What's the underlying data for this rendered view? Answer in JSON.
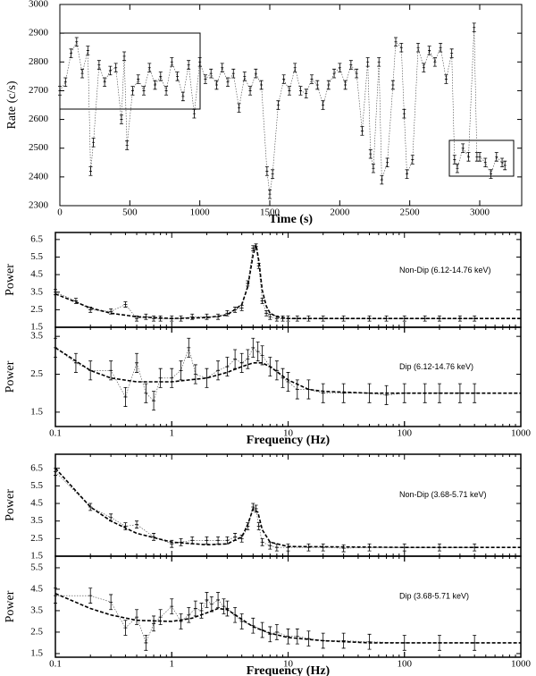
{
  "chart_data": [
    {
      "type": "line",
      "xlabel": "Time (s)",
      "ylabel": "Rate (c/s)",
      "xlim": [
        0,
        3300
      ],
      "xticks": [
        0,
        500,
        1000,
        1500,
        2000,
        2500,
        3000
      ],
      "ylim": [
        2300,
        3000
      ],
      "yticks": [
        2300,
        2400,
        2500,
        2600,
        2700,
        2800,
        2900,
        3000
      ],
      "error": 15,
      "color": "#000000",
      "x": [
        0,
        40,
        80,
        120,
        160,
        200,
        220,
        240,
        280,
        320,
        360,
        400,
        440,
        460,
        480,
        520,
        560,
        600,
        640,
        680,
        720,
        760,
        800,
        840,
        880,
        920,
        960,
        1000,
        1040,
        1080,
        1120,
        1160,
        1200,
        1240,
        1280,
        1320,
        1360,
        1400,
        1440,
        1480,
        1500,
        1520,
        1560,
        1600,
        1640,
        1680,
        1720,
        1760,
        1800,
        1840,
        1880,
        1920,
        1960,
        2000,
        2040,
        2080,
        2120,
        2160,
        2200,
        2220,
        2240,
        2280,
        2300,
        2340,
        2380,
        2400,
        2440,
        2460,
        2480,
        2520,
        2560,
        2600,
        2640,
        2680,
        2720,
        2760,
        2800,
        2820,
        2840,
        2880,
        2920,
        2960,
        2980,
        3000,
        3040,
        3080,
        3120,
        3160,
        3180
      ],
      "values": [
        2700,
        2730,
        2830,
        2870,
        2760,
        2840,
        2420,
        2520,
        2790,
        2730,
        2770,
        2780,
        2600,
        2820,
        2510,
        2700,
        2740,
        2700,
        2780,
        2720,
        2750,
        2700,
        2800,
        2750,
        2680,
        2790,
        2620,
        2800,
        2740,
        2760,
        2720,
        2780,
        2730,
        2760,
        2640,
        2750,
        2700,
        2760,
        2720,
        2420,
        2340,
        2410,
        2650,
        2740,
        2700,
        2780,
        2700,
        2690,
        2740,
        2720,
        2650,
        2720,
        2760,
        2780,
        2720,
        2790,
        2760,
        2560,
        2800,
        2480,
        2430,
        2800,
        2390,
        2450,
        2720,
        2870,
        2850,
        2620,
        2410,
        2460,
        2850,
        2780,
        2840,
        2800,
        2850,
        2740,
        2830,
        2460,
        2430,
        2500,
        2470,
        2920,
        2470,
        2470,
        2450,
        2410,
        2470,
        2450,
        2440
      ]
    },
    {
      "type": "scatter",
      "xscale": "log",
      "ylabel": "Power",
      "annotation": "Non-Dip (6.12-14.76 keV)",
      "xlim": [
        0.1,
        1000
      ],
      "ylim": [
        1.5,
        6.9
      ],
      "yticks": [
        1.5,
        2.5,
        3.5,
        4.5,
        5.5,
        6.5
      ],
      "error": 0.15,
      "x": [
        0.1,
        0.15,
        0.2,
        0.3,
        0.4,
        0.5,
        0.6,
        0.7,
        0.8,
        1,
        1.2,
        1.5,
        2,
        2.5,
        3,
        3.5,
        4,
        4.5,
        5,
        5.3,
        5.6,
        6,
        6.5,
        7,
        8,
        9,
        10,
        12,
        15,
        20,
        30,
        50,
        70,
        100,
        150,
        200,
        300,
        400
      ],
      "values": [
        3.5,
        3.0,
        2.5,
        2.4,
        2.8,
        2.0,
        2.1,
        2.0,
        2.0,
        2.0,
        2.0,
        2.1,
        2.1,
        2.1,
        2.3,
        2.5,
        2.6,
        4.0,
        6.0,
        6.1,
        5.0,
        3.0,
        2.3,
        2.1,
        2.0,
        2.0,
        2.0,
        2.0,
        2.0,
        2.0,
        2.0,
        2.0,
        2.0,
        2.0,
        2.0,
        2.0,
        2.0,
        2.0
      ],
      "model_x": [
        0.1,
        0.2,
        0.3,
        0.5,
        1,
        2,
        3,
        4,
        4.5,
        5,
        5.3,
        5.6,
        6,
        6.5,
        7,
        8,
        10,
        20,
        50,
        100,
        300,
        1000
      ],
      "model_values": [
        3.4,
        2.6,
        2.3,
        2.1,
        2.0,
        2.05,
        2.2,
        2.8,
        3.8,
        5.6,
        6.2,
        5.3,
        3.6,
        2.7,
        2.3,
        2.1,
        2.0,
        2.0,
        2.0,
        2.0,
        2.0,
        2.0
      ]
    },
    {
      "type": "scatter",
      "xscale": "log",
      "ylabel": "Power",
      "xlabel": "Frequency (Hz)",
      "annotation": "Dip (6.12-14.76 keV)",
      "xlim": [
        0.1,
        1000
      ],
      "xticks": [
        0.1,
        1,
        10,
        100,
        1000
      ],
      "ylim": [
        1.12,
        3.74
      ],
      "yticks": [
        1.5,
        2.5,
        3.5
      ],
      "error": 0.25,
      "x": [
        0.1,
        0.15,
        0.2,
        0.3,
        0.4,
        0.5,
        0.6,
        0.7,
        0.8,
        1,
        1.2,
        1.4,
        1.6,
        2,
        2.5,
        3,
        3.5,
        4,
        4.5,
        5,
        5.5,
        6,
        7,
        8,
        9,
        10,
        12,
        15,
        20,
        30,
        50,
        70,
        100,
        150,
        200,
        300,
        400
      ],
      "values": [
        3.2,
        2.8,
        2.6,
        2.6,
        1.9,
        2.8,
        2.0,
        1.8,
        2.4,
        2.4,
        2.6,
        3.2,
        2.5,
        2.4,
        2.6,
        2.7,
        2.9,
        2.8,
        2.9,
        3.2,
        3.1,
        3.0,
        2.7,
        2.6,
        2.4,
        2.3,
        2.1,
        2.1,
        2.0,
        2.0,
        2.0,
        1.95,
        2.0,
        2.0,
        2.0,
        2.0,
        2.0
      ],
      "model_x": [
        0.1,
        0.2,
        0.3,
        0.5,
        1,
        2,
        3,
        4,
        5,
        6,
        7,
        10,
        15,
        20,
        50,
        100,
        1000
      ],
      "model_values": [
        3.2,
        2.6,
        2.4,
        2.3,
        2.3,
        2.4,
        2.55,
        2.7,
        2.8,
        2.8,
        2.7,
        2.35,
        2.1,
        2.05,
        2.0,
        2.0,
        2.0
      ]
    },
    {
      "type": "scatter",
      "xscale": "log",
      "ylabel": "Power",
      "annotation": "Non-Dip (3.68-5.71 keV)",
      "xlim": [
        0.1,
        1000
      ],
      "ylim": [
        1.5,
        7.3
      ],
      "yticks": [
        1.5,
        2.5,
        3.5,
        4.5,
        5.5,
        6.5
      ],
      "error": 0.2,
      "x": [
        0.1,
        0.2,
        0.3,
        0.4,
        0.5,
        0.7,
        1,
        1.2,
        1.5,
        2,
        2.5,
        3,
        3.5,
        4,
        4.5,
        5,
        5.3,
        5.6,
        6,
        7,
        8,
        10,
        15,
        20,
        30,
        50,
        100,
        200,
        400
      ],
      "values": [
        6.3,
        4.3,
        3.7,
        3.2,
        3.3,
        2.6,
        2.2,
        2.3,
        2.4,
        2.4,
        2.4,
        2.4,
        2.6,
        2.5,
        3.2,
        4.3,
        4.2,
        3.2,
        2.3,
        2.1,
        2.0,
        2.0,
        2.0,
        2.0,
        1.95,
        2.0,
        2.0,
        2.0,
        2.0
      ],
      "model_x": [
        0.1,
        0.2,
        0.3,
        0.5,
        1,
        2,
        3,
        4,
        4.5,
        5,
        5.5,
        6,
        7,
        10,
        100,
        1000
      ],
      "model_values": [
        6.5,
        4.3,
        3.5,
        2.8,
        2.3,
        2.15,
        2.2,
        2.6,
        3.3,
        4.2,
        4.0,
        3.0,
        2.3,
        2.05,
        2.0,
        2.0
      ]
    },
    {
      "type": "scatter",
      "xscale": "log",
      "ylabel": "Power",
      "xlabel": "Frequency (Hz)",
      "annotation": "Dip (3.68-5.71 keV)",
      "xlim": [
        0.1,
        1000
      ],
      "xticks": [
        0.1,
        1,
        10,
        100,
        1000
      ],
      "ylim": [
        1.33,
        6.04
      ],
      "yticks": [
        1.5,
        2.5,
        3.5,
        4.5,
        5.5
      ],
      "error": 0.35,
      "x": [
        0.1,
        0.2,
        0.3,
        0.4,
        0.5,
        0.6,
        0.7,
        0.8,
        1,
        1.2,
        1.4,
        1.6,
        1.8,
        2,
        2.2,
        2.5,
        2.8,
        3,
        3.5,
        4,
        5,
        6,
        7,
        8,
        10,
        12,
        15,
        20,
        30,
        50,
        100,
        200,
        400
      ],
      "values": [
        4.2,
        4.2,
        3.9,
        2.7,
        3.2,
        2.0,
        2.9,
        3.2,
        3.7,
        3.0,
        3.3,
        3.6,
        3.5,
        4.0,
        3.8,
        4.0,
        3.7,
        3.6,
        3.3,
        3.0,
        2.8,
        2.6,
        2.4,
        2.5,
        2.3,
        2.3,
        2.2,
        2.1,
        2.1,
        2.05,
        2.0,
        2.0,
        2.0
      ],
      "model_x": [
        0.1,
        0.2,
        0.3,
        0.5,
        1,
        1.5,
        2,
        2.5,
        3,
        4,
        5,
        7,
        10,
        20,
        50,
        100,
        1000
      ],
      "model_values": [
        4.3,
        3.6,
        3.3,
        3.05,
        3.0,
        3.15,
        3.4,
        3.6,
        3.55,
        3.1,
        2.75,
        2.45,
        2.25,
        2.1,
        2.0,
        2.0,
        2.0
      ]
    }
  ]
}
